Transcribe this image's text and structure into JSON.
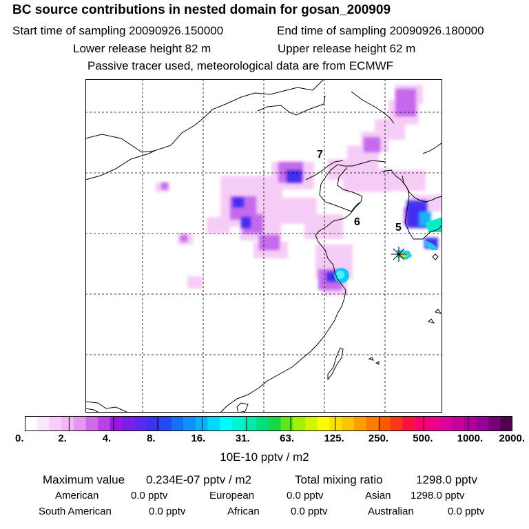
{
  "header": {
    "title": "BC  source contributions in nested domain for gosan_200909",
    "start_label": "Start time of sampling 20090926.150000",
    "end_label": "End time of sampling 20090926.180000",
    "lower_label": "Lower release height   82 m",
    "upper_label": "Upper release height   62 m",
    "note": "Passive tracer used, meteorological data are from ECMWF"
  },
  "map": {
    "labels": [
      "7",
      "6",
      "5"
    ],
    "receptor": "Gosan"
  },
  "legend": {
    "colors": [
      "#ffffff",
      "#fce6fc",
      "#f8cef8",
      "#f4b6f4",
      "#e895f0",
      "#d06ae8",
      "#b842e8",
      "#9a16e8",
      "#7a1eea",
      "#5a28f0",
      "#3c32f0",
      "#2448f4",
      "#1470f8",
      "#0c92fa",
      "#06b4fc",
      "#00d8fe",
      "#00fcfc",
      "#00f4d4",
      "#00eca8",
      "#00e07c",
      "#14d844",
      "#5ce818",
      "#a0f008",
      "#d4f400",
      "#fcfc00",
      "#fce000",
      "#fcc400",
      "#fca000",
      "#fc7c00",
      "#fc5800",
      "#fc3418",
      "#fc1040",
      "#fc0068",
      "#f00088",
      "#e0009c",
      "#c8009c",
      "#b0009c",
      "#98009c",
      "#780078",
      "#500050"
    ],
    "ticks": [
      "0.",
      "2.",
      "4.",
      "8.",
      "16.",
      "31.",
      "63.",
      "125.",
      "250.",
      "500.",
      "1000.",
      "2000."
    ],
    "unit": "10E-10 pptv / m2"
  },
  "stats": {
    "max_label": "Maximum value",
    "max_value": "0.234E-07 pptv / m2",
    "total_label": "Total mixing ratio",
    "total_value": "1298.0 pptv",
    "regions": [
      {
        "name": "American",
        "value": "0.0 pptv"
      },
      {
        "name": "European",
        "value": "0.0 pptv"
      },
      {
        "name": "Asian",
        "value": "1298.0 pptv"
      },
      {
        "name": "South American",
        "value": "0.0 pptv"
      },
      {
        "name": "African",
        "value": "0.0 pptv"
      },
      {
        "name": "Australian",
        "value": "0.0 pptv"
      }
    ]
  },
  "chart_data": {
    "type": "heatmap",
    "title": "BC  source contributions in nested domain for gosan_200909",
    "colorbar_ticks": [
      0,
      2,
      4,
      8,
      16,
      31,
      63,
      125,
      250,
      500,
      1000,
      2000
    ],
    "colorbar_unit": "10E-10 pptv / m2",
    "grid": true
  }
}
